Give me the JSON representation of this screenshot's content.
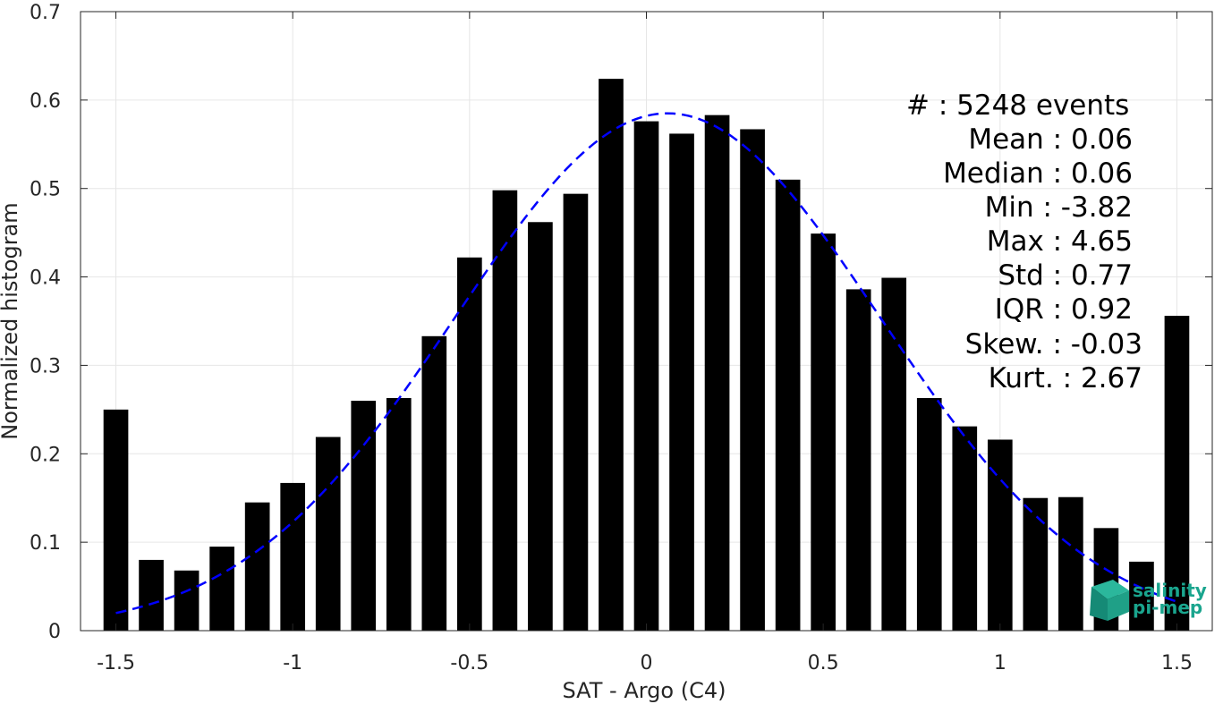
{
  "chart_data": {
    "type": "bar",
    "xlabel": "SAT - Argo (C4)",
    "ylabel": "Normalized histogram",
    "xlim": [
      -1.6,
      1.6
    ],
    "ylim": [
      0,
      0.7
    ],
    "xticks": [
      -1.5,
      -1,
      -0.5,
      0,
      0.5,
      1,
      1.5
    ],
    "xtick_labels": [
      "-1.5",
      "-1",
      "-0.5",
      "0",
      "0.5",
      "1",
      "1.5"
    ],
    "yticks": [
      0,
      0.1,
      0.2,
      0.3,
      0.4,
      0.5,
      0.6,
      0.7
    ],
    "ytick_labels": [
      "0",
      "0.1",
      "0.2",
      "0.3",
      "0.4",
      "0.5",
      "0.6",
      "0.7"
    ],
    "grid": true,
    "bar_color": "#000000",
    "bar_width": 0.07,
    "bins": [
      {
        "x": -1.5,
        "value": 0.25
      },
      {
        "x": -1.4,
        "value": 0.08
      },
      {
        "x": -1.3,
        "value": 0.068
      },
      {
        "x": -1.2,
        "value": 0.095
      },
      {
        "x": -1.1,
        "value": 0.145
      },
      {
        "x": -1.0,
        "value": 0.167
      },
      {
        "x": -0.9,
        "value": 0.219
      },
      {
        "x": -0.8,
        "value": 0.26
      },
      {
        "x": -0.7,
        "value": 0.263
      },
      {
        "x": -0.6,
        "value": 0.333
      },
      {
        "x": -0.5,
        "value": 0.422
      },
      {
        "x": -0.4,
        "value": 0.498
      },
      {
        "x": -0.3,
        "value": 0.462
      },
      {
        "x": -0.2,
        "value": 0.494
      },
      {
        "x": -0.1,
        "value": 0.624
      },
      {
        "x": 0.0,
        "value": 0.576
      },
      {
        "x": 0.1,
        "value": 0.562
      },
      {
        "x": 0.2,
        "value": 0.583
      },
      {
        "x": 0.3,
        "value": 0.567
      },
      {
        "x": 0.4,
        "value": 0.51
      },
      {
        "x": 0.5,
        "value": 0.449
      },
      {
        "x": 0.6,
        "value": 0.386
      },
      {
        "x": 0.7,
        "value": 0.399
      },
      {
        "x": 0.8,
        "value": 0.263
      },
      {
        "x": 0.9,
        "value": 0.231
      },
      {
        "x": 1.0,
        "value": 0.216
      },
      {
        "x": 1.1,
        "value": 0.15
      },
      {
        "x": 1.2,
        "value": 0.151
      },
      {
        "x": 1.3,
        "value": 0.116
      },
      {
        "x": 1.4,
        "value": 0.078
      },
      {
        "x": 1.5,
        "value": 0.356
      }
    ],
    "fit_curve": {
      "type": "gaussian",
      "style": "dashed",
      "color": "#0000ff",
      "mean": 0.06,
      "peak": 0.585,
      "sigma": 0.6,
      "x_range": [
        -1.5,
        1.5
      ]
    },
    "stats": [
      {
        "label": "#  : 5248 events"
      },
      {
        "label": "Mean : 0.06"
      },
      {
        "label": "Median : 0.06"
      },
      {
        "label": "Min : -3.82"
      },
      {
        "label": "Max : 4.65"
      },
      {
        "label": "Std : 0.77"
      },
      {
        "label": "IQR : 0.92"
      },
      {
        "label": "Skew. : -0.03"
      },
      {
        "label": "Kurt. : 2.67"
      }
    ]
  },
  "logo": {
    "line1": "salinity",
    "line2": "pi-mep",
    "color": "#1aa58e"
  }
}
